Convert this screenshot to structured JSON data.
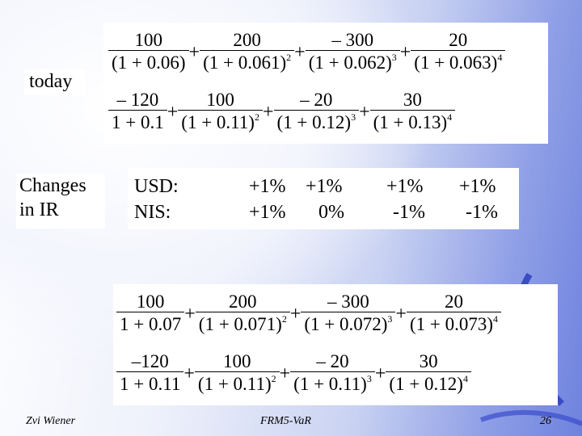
{
  "labels": {
    "today": "today",
    "changes_line1": "Changes",
    "changes_line2": "in IR"
  },
  "ir_table": {
    "usd_label": "USD:",
    "nis_label": "NIS:",
    "usd_values": [
      "+1%",
      "+1%",
      "+1%",
      "+1%"
    ],
    "nis_values": [
      "+1%",
      "0%",
      "-1%",
      "-1%"
    ]
  },
  "formulas": {
    "today_usd": [
      {
        "num": "100",
        "base": "(1 + 0.06)",
        "exp": ""
      },
      {
        "num": "200",
        "base": "(1 + 0.061)",
        "exp": "2"
      },
      {
        "num": "– 300",
        "base": "(1 + 0.062)",
        "exp": "3"
      },
      {
        "num": "20",
        "base": "(1 + 0.063)",
        "exp": "4"
      }
    ],
    "today_nis": [
      {
        "num": "– 120",
        "base": "1 + 0.1",
        "exp": ""
      },
      {
        "num": "100",
        "base": "(1 + 0.11)",
        "exp": "2"
      },
      {
        "num": "– 20",
        "base": "(1 + 0.12)",
        "exp": "3"
      },
      {
        "num": "30",
        "base": "(1 + 0.13)",
        "exp": "4"
      }
    ],
    "shift_usd": [
      {
        "num": "100",
        "base": "1 + 0.07",
        "exp": ""
      },
      {
        "num": "200",
        "base": "(1 + 0.071)",
        "exp": "2"
      },
      {
        "num": "– 300",
        "base": "(1 + 0.072)",
        "exp": "3"
      },
      {
        "num": "20",
        "base": "(1 + 0.073)",
        "exp": "4"
      }
    ],
    "shift_nis": [
      {
        "num": "–120",
        "base": "1 + 0.11",
        "exp": ""
      },
      {
        "num": "100",
        "base": "(1 + 0.11)",
        "exp": "2"
      },
      {
        "num": "– 20",
        "base": "(1 + 0.11)",
        "exp": "3"
      },
      {
        "num": "30",
        "base": "(1 + 0.12)",
        "exp": "4"
      }
    ]
  },
  "footer": {
    "author": "Zvi Wiener",
    "course": "FRM5-VaR",
    "page": "26"
  }
}
